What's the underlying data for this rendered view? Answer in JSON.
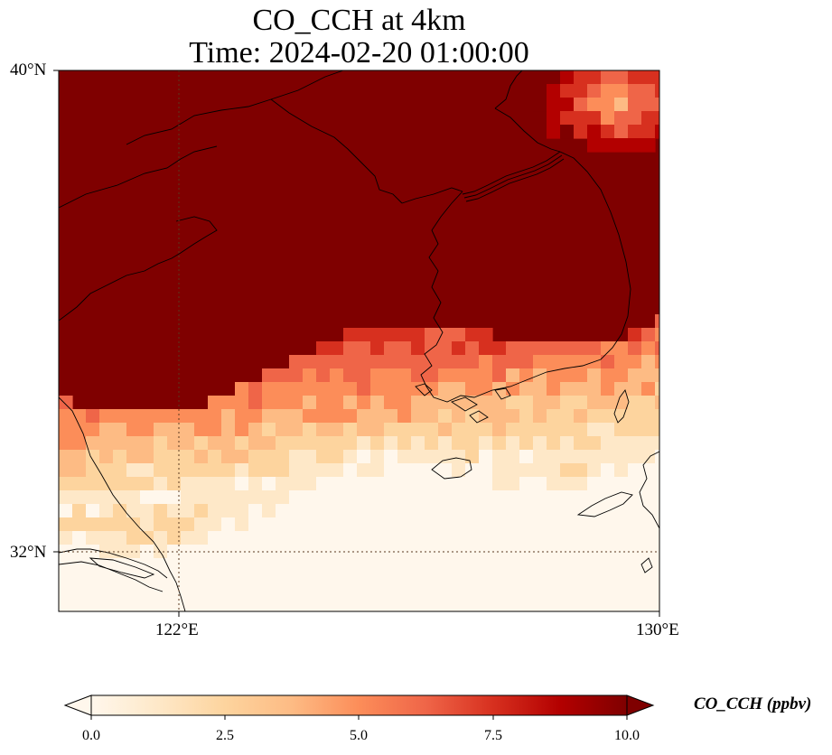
{
  "title": {
    "line1": "CO_CCH at 4km",
    "line2": "Time: 2024-02-20 01:00:00"
  },
  "map": {
    "lon_range": [
      120,
      130
    ],
    "lat_range": [
      31,
      40
    ],
    "gridlines": true,
    "lon_ticks": [
      {
        "value": 122,
        "label": "122°E"
      },
      {
        "value": 130,
        "label": "130°E"
      }
    ],
    "lat_ticks": [
      {
        "value": 40,
        "label": "40°N"
      },
      {
        "value": 32,
        "label": "32°N"
      }
    ],
    "coastlines": true
  },
  "colorbar": {
    "label": "CO_CCH (ppbv)",
    "range": [
      0.0,
      10.0
    ],
    "extend": "both",
    "ticks": [
      "0.0",
      "2.5",
      "5.0",
      "7.5",
      "10.0"
    ],
    "colormap": "OrRd",
    "colors": [
      "#fff7ec",
      "#fee8c8",
      "#fdd49e",
      "#fdbb84",
      "#fc8d59",
      "#ef6548",
      "#d7301f",
      "#b30000",
      "#7f0000"
    ]
  },
  "field_description": {
    "saturated_region": "north of ~34°N over Yellow Sea, Korea and Bohai; above 10 ppbv",
    "low_region": "south near 32-33°N over East China Sea; 0-3 ppbv"
  }
}
